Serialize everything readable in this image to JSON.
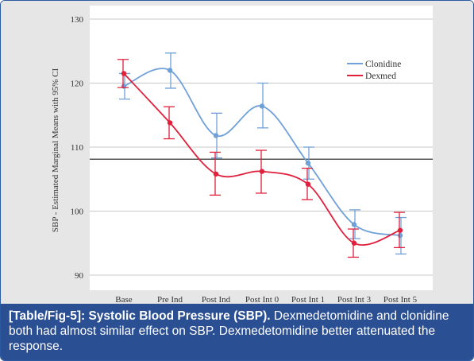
{
  "chart_data": {
    "type": "line",
    "ylabel": "SBP - Estimated Marginal Means with 95% CI",
    "categories": [
      "Base",
      "Pre Ind",
      "Post Ind",
      "Post Int 0",
      "Post Int 1",
      "Post Int 3",
      "Post Int 5"
    ],
    "ylim": [
      88,
      132
    ],
    "yticks": [
      90,
      100,
      110,
      120,
      130
    ],
    "grid": true,
    "reference_line": 108.1,
    "legend_position": "top-right",
    "series": [
      {
        "name": "Clonidine",
        "color": "#6fa0d8",
        "values": [
          119.5,
          122.0,
          111.8,
          116.4,
          107.5,
          97.9,
          96.2
        ],
        "ci_low": [
          117.5,
          119.2,
          108.3,
          113.0,
          105.0,
          95.7,
          93.3
        ],
        "ci_high": [
          121.5,
          124.7,
          115.3,
          120.0,
          110.0,
          100.2,
          99.0
        ]
      },
      {
        "name": "Dexmed",
        "color": "#e0203c",
        "values": [
          121.5,
          113.8,
          105.8,
          106.2,
          104.2,
          95.0,
          97.0
        ],
        "ci_low": [
          119.3,
          111.3,
          102.5,
          102.8,
          101.8,
          92.8,
          94.3
        ],
        "ci_high": [
          123.7,
          116.3,
          109.2,
          109.5,
          106.7,
          97.2,
          99.8
        ]
      }
    ]
  },
  "caption": {
    "label": "[Table/Fig-5]:",
    "title": "Systolic Blood Pressure (SBP).",
    "text": "Dexmedetomidine and clonidine both had almost similar effect on SBP. Dexmedetomidine better attenuated the response."
  }
}
